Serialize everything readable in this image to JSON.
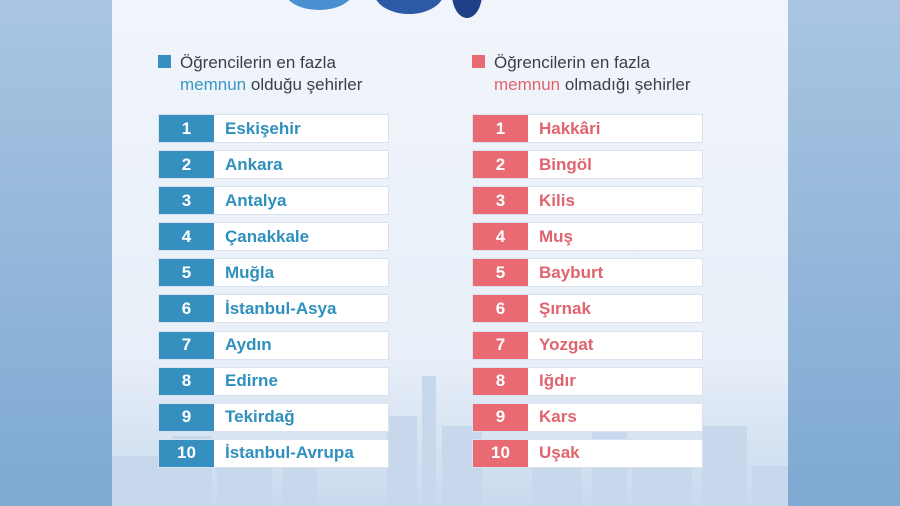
{
  "left": {
    "legend_line1": "Öğrencilerin en fazla",
    "legend_highlight": "memnun",
    "legend_rest": "olduğu şehirler",
    "accent": "#3590bf",
    "rows": [
      {
        "rank": "1",
        "city": "Eskişehir"
      },
      {
        "rank": "2",
        "city": "Ankara"
      },
      {
        "rank": "3",
        "city": "Antalya"
      },
      {
        "rank": "4",
        "city": "Çanakkale"
      },
      {
        "rank": "5",
        "city": "Muğla"
      },
      {
        "rank": "6",
        "city": "İstanbul-Asya"
      },
      {
        "rank": "7",
        "city": "Aydın"
      },
      {
        "rank": "8",
        "city": "Edirne"
      },
      {
        "rank": "9",
        "city": "Tekirdağ"
      },
      {
        "rank": "10",
        "city": "İstanbul-Avrupa"
      }
    ]
  },
  "right": {
    "legend_line1": "Öğrencilerin en fazla",
    "legend_highlight": "memnun",
    "legend_rest": "olmadığı şehirler",
    "accent": "#e96a72",
    "rows": [
      {
        "rank": "1",
        "city": "Hakkâri"
      },
      {
        "rank": "2",
        "city": "Bingöl"
      },
      {
        "rank": "3",
        "city": "Kilis"
      },
      {
        "rank": "4",
        "city": "Muş"
      },
      {
        "rank": "5",
        "city": "Bayburt"
      },
      {
        "rank": "6",
        "city": "Şırnak"
      },
      {
        "rank": "7",
        "city": "Yozgat"
      },
      {
        "rank": "8",
        "city": "Iğdır"
      },
      {
        "rank": "9",
        "city": "Kars"
      },
      {
        "rank": "10",
        "city": "Uşak"
      }
    ]
  }
}
